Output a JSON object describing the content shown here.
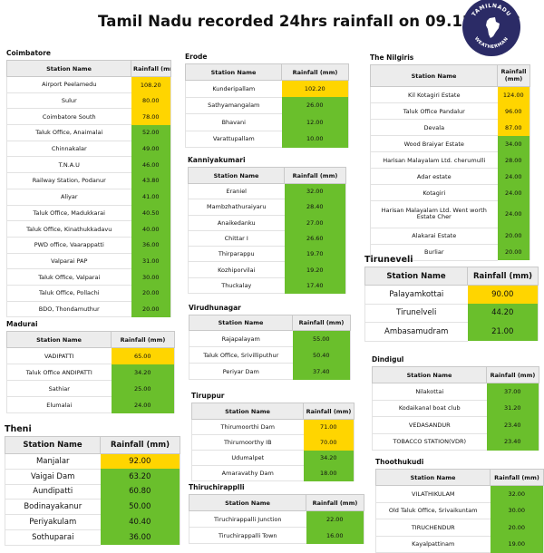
{
  "title": "Tamil Nadu recorded 24hrs rainfall on 09.12.2023",
  "logo": {
    "text_top": "TAMILNADU",
    "text_bottom": "WEATHERMAN"
  },
  "colors": {
    "yellow": "#ffd500",
    "green": "#6abf2c"
  },
  "headers": {
    "station": "Station Name",
    "rainfall": "Rainfall (mm)",
    "rainfall_nested": "Rainfall\n(mm)"
  },
  "districts": {
    "coimbatore": {
      "name": "Coimbatore",
      "rows": [
        {
          "station": "Airport Peelamedu",
          "rainfall": "108.20",
          "color": "yellow"
        },
        {
          "station": "Sulur",
          "rainfall": "80.00",
          "color": "yellow"
        },
        {
          "station": "Coimbatore South",
          "rainfall": "78.00",
          "color": "yellow"
        },
        {
          "station": "Taluk Office, Anaimalai",
          "rainfall": "52.00",
          "color": "green"
        },
        {
          "station": "Chinnakalar",
          "rainfall": "49.00",
          "color": "green"
        },
        {
          "station": "T.N.A.U",
          "rainfall": "46.00",
          "color": "green"
        },
        {
          "station": "Railway Station, Podanur",
          "rainfall": "43.80",
          "color": "green"
        },
        {
          "station": "Aliyar",
          "rainfall": "41.00",
          "color": "green"
        },
        {
          "station": "Taluk Office, Madukkarai",
          "rainfall": "40.50",
          "color": "green"
        },
        {
          "station": "Taluk Office, Kinathukkadavu",
          "rainfall": "40.00",
          "color": "green"
        },
        {
          "station": "PWD office, Vaarappatti",
          "rainfall": "36.00",
          "color": "green"
        },
        {
          "station": "Valparai PAP",
          "rainfall": "31.00",
          "color": "green"
        },
        {
          "station": "Taluk Office, Valparai",
          "rainfall": "30.00",
          "color": "green"
        },
        {
          "station": "Taluk Office, Pollachi",
          "rainfall": "20.00",
          "color": "green"
        },
        {
          "station": "BDO, Thondamuthur",
          "rainfall": "20.00",
          "color": "green"
        }
      ]
    },
    "madurai": {
      "name": "Madurai",
      "rows": [
        {
          "station": "VADIPATTI",
          "rainfall": "65.00",
          "color": "yellow"
        },
        {
          "station": "Taluk Office ANDIPATTI",
          "rainfall": "34.20",
          "color": "green"
        },
        {
          "station": "Sathiar",
          "rainfall": "25.00",
          "color": "green"
        },
        {
          "station": "Elumalai",
          "rainfall": "24.00",
          "color": "green"
        }
      ]
    },
    "theni": {
      "name": "Theni",
      "rows": [
        {
          "station": "Manjalar",
          "rainfall": "92.00",
          "color": "yellow"
        },
        {
          "station": "Vaigai Dam",
          "rainfall": "63.20",
          "color": "green"
        },
        {
          "station": "Aundipatti",
          "rainfall": "60.80",
          "color": "green"
        },
        {
          "station": "Bodinayakanur",
          "rainfall": "50.00",
          "color": "green"
        },
        {
          "station": "Periyakulam",
          "rainfall": "40.40",
          "color": "green"
        },
        {
          "station": "Sothuparai",
          "rainfall": "36.00",
          "color": "green"
        }
      ]
    },
    "erode": {
      "name": "Erode",
      "rows": [
        {
          "station": "Kunderipallam",
          "rainfall": "102.20",
          "color": "yellow"
        },
        {
          "station": "Sathyamangalam",
          "rainfall": "26.00",
          "color": "green"
        },
        {
          "station": "Bhavani",
          "rainfall": "12.00",
          "color": "green"
        },
        {
          "station": "Varattupallam",
          "rainfall": "10.00",
          "color": "green"
        }
      ]
    },
    "kanniyakumari": {
      "name": "Kanniyakumari",
      "rows": [
        {
          "station": "Eraniel",
          "rainfall": "32.00",
          "color": "green"
        },
        {
          "station": "Mambzhathuraiyaru",
          "rainfall": "28.40",
          "color": "green"
        },
        {
          "station": "Anaikedanku",
          "rainfall": "27.00",
          "color": "green"
        },
        {
          "station": "Chittar I",
          "rainfall": "26.60",
          "color": "green"
        },
        {
          "station": "Thirparappu",
          "rainfall": "19.70",
          "color": "green"
        },
        {
          "station": "Kozhiporvilai",
          "rainfall": "19.20",
          "color": "green"
        },
        {
          "station": "Thuckalay",
          "rainfall": "17.40",
          "color": "green"
        }
      ]
    },
    "virudhunagar": {
      "name": "Virudhunagar",
      "rows": [
        {
          "station": "Rajapalayam",
          "rainfall": "55.00",
          "color": "green"
        },
        {
          "station": "Taluk Office, Srivilliputhur",
          "rainfall": "50.40",
          "color": "green"
        },
        {
          "station": "Periyar Dam",
          "rainfall": "37.40",
          "color": "green"
        }
      ]
    },
    "tiruppur": {
      "name": "Tiruppur",
      "rows": [
        {
          "station": "Thirumoorthi Dam",
          "rainfall": "71.00",
          "color": "yellow"
        },
        {
          "station": "Thirumoorthy IB",
          "rainfall": "70.00",
          "color": "yellow"
        },
        {
          "station": "Udumalpet",
          "rainfall": "34.20",
          "color": "green"
        },
        {
          "station": "Amaravathy Dam",
          "rainfall": "18.00",
          "color": "green"
        }
      ]
    },
    "tiruchirappalli": {
      "name": "Thiruchirapplli",
      "rows": [
        {
          "station": "Tiruchirappalli Junction",
          "rainfall": "22.00",
          "color": "green"
        },
        {
          "station": "Tiruchirappalli Town",
          "rainfall": "16.00",
          "color": "green"
        }
      ]
    },
    "nilgiris": {
      "name": "The Nilgiris",
      "rows": [
        {
          "station": "Kil Kotagiri Estate",
          "rainfall": "124.00",
          "color": "yellow"
        },
        {
          "station": "Taluk Office Pandalur",
          "rainfall": "96.00",
          "color": "yellow"
        },
        {
          "station": "Devala",
          "rainfall": "87.00",
          "color": "yellow"
        },
        {
          "station": "Wood Braiyar Estate",
          "rainfall": "34.00",
          "color": "green"
        },
        {
          "station": "Harisan Malayalam Ltd. cherumulli",
          "rainfall": "28.00",
          "color": "green"
        },
        {
          "station": "Adar estate",
          "rainfall": "24.00",
          "color": "green"
        },
        {
          "station": "Kotagiri",
          "rainfall": "24.00",
          "color": "green"
        },
        {
          "station": "Harisan Malayalam Ltd. Went worth Estate Cher",
          "rainfall": "24.00",
          "color": "green"
        },
        {
          "station": "Alakarai Estate",
          "rainfall": "20.00",
          "color": "green"
        },
        {
          "station": "Burliar",
          "rainfall": "20.00",
          "color": "green"
        }
      ]
    },
    "tirunelveli": {
      "name": "Tiruneveli",
      "rows": [
        {
          "station": "Palayamkottai",
          "rainfall": "90.00",
          "color": "yellow"
        },
        {
          "station": "Tirunelveli",
          "rainfall": "44.20",
          "color": "green"
        },
        {
          "station": "Ambasamudram",
          "rainfall": "21.00",
          "color": "green"
        }
      ]
    },
    "dindigul": {
      "name": "Dindigul",
      "rows": [
        {
          "station": "Nilakottai",
          "rainfall": "37.00",
          "color": "green"
        },
        {
          "station": "Kodaikanal boat club",
          "rainfall": "31.20",
          "color": "green"
        },
        {
          "station": "VEDASANDUR",
          "rainfall": "23.40",
          "color": "green"
        },
        {
          "station": "TOBACCO STATION(VDR)",
          "rainfall": "23.40",
          "color": "green"
        }
      ]
    },
    "thoothukudi": {
      "name": "Thoothukudi",
      "rows": [
        {
          "station": "VILATHIKULAM",
          "rainfall": "32.00",
          "color": "green"
        },
        {
          "station": "Old Taluk Office, Srivaikuntam",
          "rainfall": "30.00",
          "color": "green"
        },
        {
          "station": "TIRUCHENDUR",
          "rainfall": "20.00",
          "color": "green"
        },
        {
          "station": "Kayalpattinam",
          "rainfall": "19.00",
          "color": "green"
        }
      ]
    }
  }
}
